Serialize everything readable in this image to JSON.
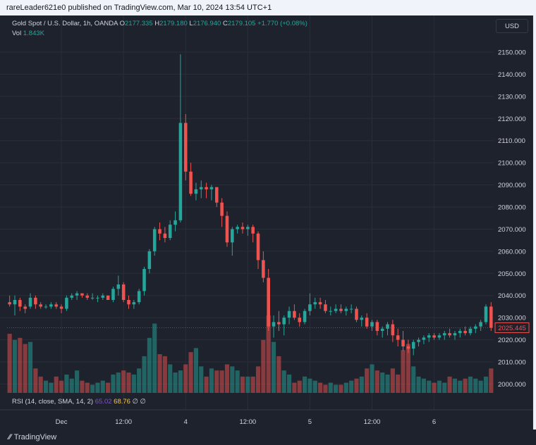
{
  "topbar": {
    "text": "rareLeader621e0 published on TradingView.com, Mar 10, 2024 13:54 UTC+1"
  },
  "header": {
    "instrument": "Gold Spot / U.S. Dollar, 1h, OANDA",
    "o_label": "O",
    "o_value": "2177.335",
    "h_label": "H",
    "h_value": "2179.180",
    "l_label": "L",
    "l_value": "2176.940",
    "c_label": "C",
    "c_value": "2179.105",
    "change": "+1.770 (+0.08%)",
    "vol_label": "Vol",
    "vol_value": "1.843K"
  },
  "currency_button": "USD",
  "rsi": {
    "label": "RSI (14, close, SMA, 14, 2)",
    "value1": "65.02",
    "value2": "68.76",
    "icons": "∅  ∅"
  },
  "footer": {
    "brand": "TradingView"
  },
  "colors": {
    "up": "#26a69a",
    "down": "#ef5350",
    "bg": "#1e222d",
    "grid": "#2a2e39",
    "text": "#d1d4dc"
  },
  "chart_data": {
    "type": "candlestick",
    "symbol": "Gold Spot / U.S. Dollar",
    "interval": "1h",
    "y_ticks": [
      2000,
      2010,
      2020,
      2030,
      2040,
      2050,
      2060,
      2070,
      2080,
      2090,
      2100,
      2110,
      2120,
      2130,
      2140,
      2150
    ],
    "y_tick_labels": [
      "2000.000",
      "2010.000",
      "2020.000",
      "2030.000",
      "2040.000",
      "2050.000",
      "2060.000",
      "2070.000",
      "2080.000",
      "2090.000",
      "2100.000",
      "2110.000",
      "2120.000",
      "2130.000",
      "2140.000",
      "2150.000"
    ],
    "ylim": [
      1996.0,
      2157.0
    ],
    "x_labels": [
      {
        "label": "Dec",
        "index": 10
      },
      {
        "label": "12:00",
        "index": 22
      },
      {
        "label": "4",
        "index": 34
      },
      {
        "label": "12:00",
        "index": 46
      },
      {
        "label": "5",
        "index": 58
      },
      {
        "label": "12:00",
        "index": 70
      },
      {
        "label": "6",
        "index": 82
      }
    ],
    "last_price": 2025.445,
    "last_price_label": "2025.445",
    "candles": [
      [
        2037,
        2040,
        2035,
        2036,
        2.9
      ],
      [
        2036,
        2040,
        2031,
        2038,
        2.6
      ],
      [
        2038,
        2039,
        2033,
        2035,
        2.7
      ],
      [
        2035,
        2036,
        2032,
        2034,
        2.4
      ],
      [
        2035,
        2041,
        2034,
        2039,
        2.5
      ],
      [
        2039,
        2040,
        2034,
        2036,
        1.2
      ],
      [
        2036,
        2037,
        2034,
        2035,
        0.8
      ],
      [
        2035,
        2036,
        2034,
        2035,
        0.6
      ],
      [
        2035,
        2037,
        2034,
        2036,
        0.5
      ],
      [
        2036,
        2037,
        2034,
        2035,
        0.8
      ],
      [
        2035,
        2036,
        2032,
        2034,
        0.6
      ],
      [
        2034,
        2040,
        2033,
        2039,
        0.9
      ],
      [
        2039,
        2041,
        2038,
        2040,
        0.7
      ],
      [
        2040,
        2042,
        2038,
        2041,
        1.1
      ],
      [
        2041,
        2041,
        2039,
        2040,
        0.6
      ],
      [
        2040,
        2041,
        2038,
        2039,
        0.5
      ],
      [
        2039,
        2041,
        2038,
        2039,
        0.4
      ],
      [
        2039,
        2040,
        2037,
        2039,
        0.5
      ],
      [
        2039,
        2041,
        2038,
        2040,
        0.6
      ],
      [
        2040,
        2040,
        2038,
        2038,
        0.5
      ],
      [
        2038,
        2044,
        2037,
        2043,
        0.9
      ],
      [
        2043,
        2049,
        2040,
        2045,
        1.0
      ],
      [
        2045,
        2046,
        2037,
        2038,
        1.1
      ],
      [
        2038,
        2040,
        2034,
        2036,
        1.0
      ],
      [
        2036,
        2038,
        2034,
        2037,
        0.9
      ],
      [
        2037,
        2043,
        2036,
        2042,
        1.2
      ],
      [
        2042,
        2053,
        2040,
        2052,
        1.8
      ],
      [
        2052,
        2061,
        2050,
        2060,
        2.7
      ],
      [
        2060,
        2071,
        2058,
        2070,
        3.4
      ],
      [
        2070,
        2073,
        2065,
        2068,
        1.9
      ],
      [
        2068,
        2071,
        2064,
        2066,
        1.8
      ],
      [
        2066,
        2074,
        2065,
        2072,
        1.4
      ],
      [
        2072,
        2078,
        2069,
        2074,
        1.0
      ],
      [
        2074,
        2149,
        2073,
        2118,
        1.1
      ],
      [
        2118,
        2122,
        2092,
        2096,
        1.4
      ],
      [
        2096,
        2100,
        2085,
        2086,
        2.0
      ],
      [
        2086,
        2091,
        2083,
        2088,
        2.2
      ],
      [
        2088,
        2092,
        2084,
        2089,
        1.3
      ],
      [
        2089,
        2091,
        2084,
        2088,
        0.8
      ],
      [
        2088,
        2090,
        2083,
        2089,
        1.2
      ],
      [
        2089,
        2089,
        2080,
        2082,
        1.1
      ],
      [
        2082,
        2084,
        2071,
        2076,
        1.1
      ],
      [
        2076,
        2078,
        2062,
        2064,
        1.4
      ],
      [
        2064,
        2071,
        2058,
        2070,
        1.3
      ],
      [
        2070,
        2072,
        2068,
        2071,
        1.1
      ],
      [
        2071,
        2073,
        2068,
        2070,
        0.8
      ],
      [
        2070,
        2072,
        2067,
        2071,
        0.8
      ],
      [
        2071,
        2072,
        2064,
        2068,
        0.8
      ],
      [
        2068,
        2069,
        2052,
        2056,
        1.3
      ],
      [
        2056,
        2060,
        2046,
        2048,
        2.6
      ],
      [
        2048,
        2052,
        2024,
        2026,
        3.8
      ],
      [
        2026,
        2031,
        2021,
        2028,
        2.5
      ],
      [
        2028,
        2033,
        2024,
        2027,
        1.8
      ],
      [
        2027,
        2031,
        2022,
        2030,
        1.1
      ],
      [
        2030,
        2035,
        2027,
        2033,
        0.9
      ],
      [
        2033,
        2036,
        2029,
        2030,
        0.5
      ],
      [
        2030,
        2032,
        2026,
        2028,
        0.6
      ],
      [
        2028,
        2034,
        2027,
        2033,
        0.8
      ],
      [
        2033,
        2041,
        2031,
        2036,
        0.7
      ],
      [
        2036,
        2039,
        2034,
        2037,
        0.6
      ],
      [
        2037,
        2039,
        2034,
        2036,
        0.5
      ],
      [
        2036,
        2038,
        2032,
        2033,
        0.4
      ],
      [
        2033,
        2035,
        2031,
        2033,
        0.5
      ],
      [
        2033,
        2036,
        2032,
        2034,
        0.4
      ],
      [
        2034,
        2036,
        2032,
        2033,
        0.4
      ],
      [
        2033,
        2035,
        2031,
        2034,
        0.5
      ],
      [
        2034,
        2036,
        2032,
        2034,
        0.6
      ],
      [
        2034,
        2035,
        2028,
        2029,
        0.7
      ],
      [
        2029,
        2031,
        2026,
        2030,
        0.8
      ],
      [
        2030,
        2032,
        2025,
        2026,
        1.2
      ],
      [
        2026,
        2029,
        2024,
        2028,
        1.4
      ],
      [
        2028,
        2029,
        2022,
        2024,
        1.1
      ],
      [
        2024,
        2026,
        2021,
        2025,
        1.0
      ],
      [
        2025,
        2028,
        2022,
        2027,
        0.9
      ],
      [
        2027,
        2029,
        2019,
        2022,
        1.2
      ],
      [
        2022,
        2025,
        2017,
        2020,
        0.9
      ],
      [
        2020,
        2024,
        2015,
        2017,
        2.1
      ],
      [
        2017,
        2020,
        2014,
        2016,
        2.4
      ],
      [
        2016,
        2020,
        2013,
        2019,
        1.3
      ],
      [
        2019,
        2021,
        2017,
        2020,
        0.8
      ],
      [
        2020,
        2022,
        2018,
        2021,
        0.7
      ],
      [
        2021,
        2023,
        2019,
        2022,
        0.6
      ],
      [
        2022,
        2023,
        2020,
        2021,
        0.5
      ],
      [
        2021,
        2023,
        2020,
        2022,
        0.6
      ],
      [
        2022,
        2024,
        2020,
        2023,
        0.5
      ],
      [
        2023,
        2025,
        2021,
        2022,
        0.8
      ],
      [
        2022,
        2024,
        2020,
        2023,
        0.7
      ],
      [
        2023,
        2025,
        2021,
        2024,
        0.6
      ],
      [
        2024,
        2026,
        2022,
        2023,
        0.7
      ],
      [
        2023,
        2026,
        2022,
        2025,
        0.8
      ],
      [
        2025,
        2027,
        2023,
        2026,
        0.7
      ],
      [
        2026,
        2029,
        2024,
        2028,
        0.6
      ],
      [
        2028,
        2036,
        2027,
        2035,
        0.8
      ],
      [
        2035,
        2037,
        2024,
        2025.445,
        1.2
      ]
    ]
  }
}
